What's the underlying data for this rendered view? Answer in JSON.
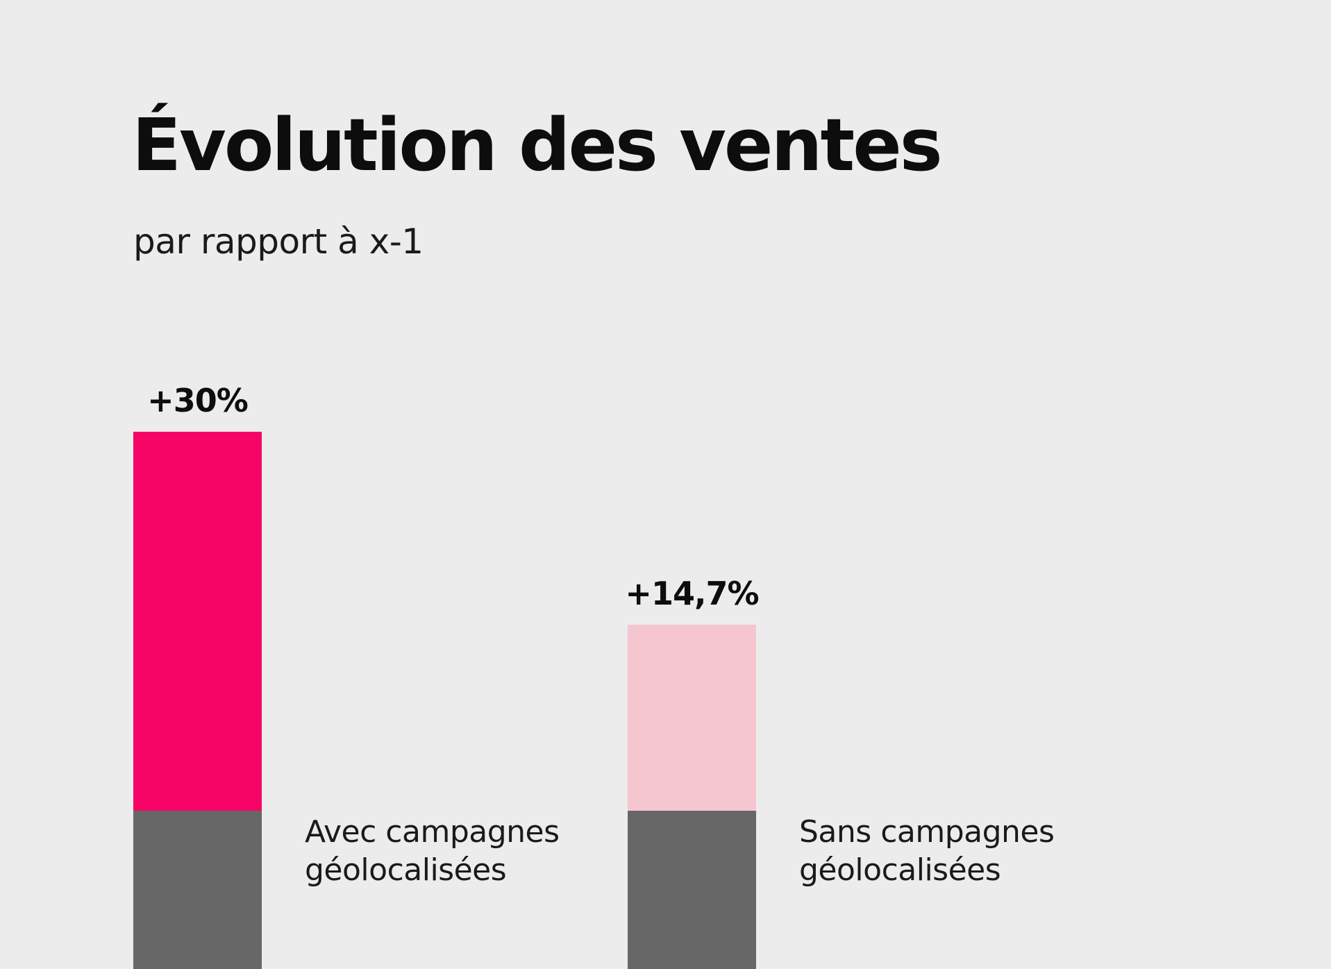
{
  "colors": {
    "background": "#ececec",
    "base_segment": "#676767",
    "text": "#0d0d0d"
  },
  "chart_data": {
    "type": "bar",
    "title": "Évolution des ventes",
    "subtitle": "par rapport à x-1",
    "categories": [
      "Avec campagnes géolocalisées",
      "Sans campagnes géolocalisées"
    ],
    "category_lines": [
      [
        "Avec campagnes",
        "géolocalisées"
      ],
      [
        "Sans campagnes",
        "géolocalisées"
      ]
    ],
    "series": [
      {
        "values": [
          30,
          14.7
        ],
        "colors": [
          "#f60466",
          "#f5c6cf"
        ]
      }
    ],
    "value_labels": [
      "+30%",
      "+14,7%"
    ],
    "ylim": [
      0,
      30
    ],
    "grid": false,
    "legend": "none"
  }
}
